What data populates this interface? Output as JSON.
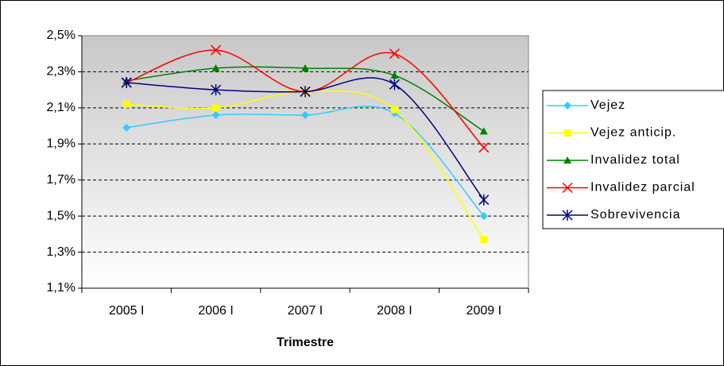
{
  "chart_data": {
    "type": "line",
    "x_label": "Trimestre",
    "categories": [
      "2005 I",
      "2006 I",
      "2007 I",
      "2008 I",
      "2009 I"
    ],
    "series": [
      {
        "name": "Vejez",
        "color": "#33ccff",
        "marker": "diamond",
        "values": [
          1.99,
          2.06,
          2.06,
          2.07,
          1.5
        ]
      },
      {
        "name": "Vejez anticip.",
        "color": "#ffff00",
        "marker": "square",
        "values": [
          2.12,
          2.1,
          2.19,
          2.09,
          1.37
        ]
      },
      {
        "name": "Invalidez total",
        "color": "#008000",
        "marker": "triangle",
        "values": [
          2.25,
          2.32,
          2.32,
          2.28,
          1.97
        ]
      },
      {
        "name": "Invalidez parcial",
        "color": "#ff0000",
        "marker": "x",
        "values": [
          2.24,
          2.42,
          2.19,
          2.4,
          1.88
        ]
      },
      {
        "name": "Sobrevivencia",
        "color": "#000080",
        "marker": "star",
        "values": [
          2.24,
          2.2,
          2.19,
          2.23,
          1.59
        ]
      }
    ],
    "ylim": [
      1.1,
      2.5
    ],
    "yticks": [
      {
        "value": 1.1,
        "label": "1,1%"
      },
      {
        "value": 1.3,
        "label": "1,3%"
      },
      {
        "value": 1.5,
        "label": "1,5%"
      },
      {
        "value": 1.7,
        "label": "1,7%"
      },
      {
        "value": 1.9,
        "label": "1,9%"
      },
      {
        "value": 2.1,
        "label": "2,1%"
      },
      {
        "value": 2.3,
        "label": "2,3%"
      },
      {
        "value": 2.5,
        "label": "2,5%"
      }
    ],
    "grid": true,
    "legend": "right"
  }
}
